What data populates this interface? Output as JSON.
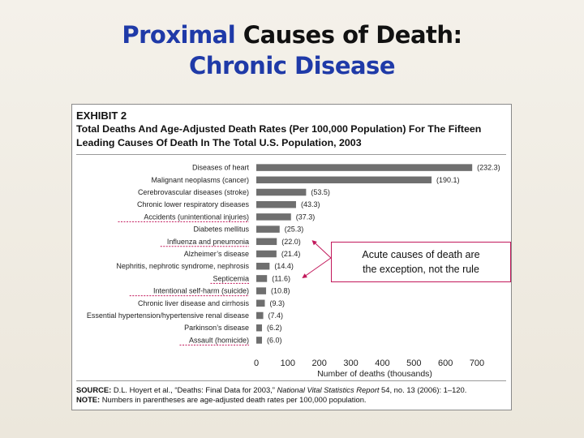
{
  "slide": {
    "title_part1": "Proximal",
    "title_part2": " Causes of Death:",
    "title_line2": "Chronic Disease"
  },
  "exhibit": {
    "label": "EXHIBIT 2",
    "caption": "Total Deaths And Age-Adjusted Death Rates (Per 100,000 Population) For The Fifteen Leading Causes Of Death In The Total U.S. Population, 2003",
    "source_label": "SOURCE:",
    "source_text": " D.L. Hoyert et al., “Deaths: Final Data for 2003,” ",
    "source_italic": "National Vital Statistics Report",
    "source_tail": " 54, no. 13 (2006): 1–120.",
    "note_label": "NOTE:",
    "note_text": " Numbers in parentheses are age-adjusted death rates per 100,000 population."
  },
  "callout": {
    "line1": "Acute causes of death are",
    "line2": "the exception, not the rule",
    "border_color": "#c2185b"
  },
  "colors": {
    "title_blue": "#1f3aa8",
    "bar_gray": "#6f6f6f",
    "underline_red": "#c2185b"
  },
  "chart_data": {
    "type": "bar",
    "orientation": "horizontal",
    "xlabel": "Number of deaths (thousands)",
    "ylabel": "",
    "xlim": [
      0,
      700
    ],
    "xticks": [
      0,
      100,
      200,
      300,
      400,
      500,
      600,
      700
    ],
    "grid": false,
    "categories": [
      "Diseases of heart",
      "Malignant neoplasms (cancer)",
      "Cerebrovascular diseases (stroke)",
      "Chronic lower respiratory diseases",
      "Accidents (unintentional injuries)",
      "Diabetes mellitus",
      "Influenza and pneumonia",
      "Alzheimer’s disease",
      "Nephritis, nephrotic syndrome, nephrosis",
      "Septicemia",
      "Intentional self-harm (suicide)",
      "Chronic liver disease and cirrhosis",
      "Essential hypertension/hypertensive renal disease",
      "Parkinson’s disease",
      "Assault (homicide)"
    ],
    "values": [
      685,
      556,
      158,
      126,
      110,
      74,
      65,
      64,
      42,
      34,
      31,
      27,
      22,
      18,
      18
    ],
    "rate_labels": [
      "(232.3)",
      "(190.1)",
      "(53.5)",
      "(43.3)",
      "(37.3)",
      "(25.3)",
      "(22.0)",
      "(21.4)",
      "(14.4)",
      "(11.6)",
      "(10.8)",
      "(9.3)",
      "(7.4)",
      "(6.2)",
      "(6.0)"
    ],
    "underlined": [
      "Accidents (unintentional injuries)",
      "Influenza and pneumonia",
      "Septicemia",
      "Intentional self-harm (suicide)",
      "Assault (homicide)"
    ],
    "callout_targets": [
      "Influenza and pneumonia",
      "Septicemia"
    ]
  }
}
